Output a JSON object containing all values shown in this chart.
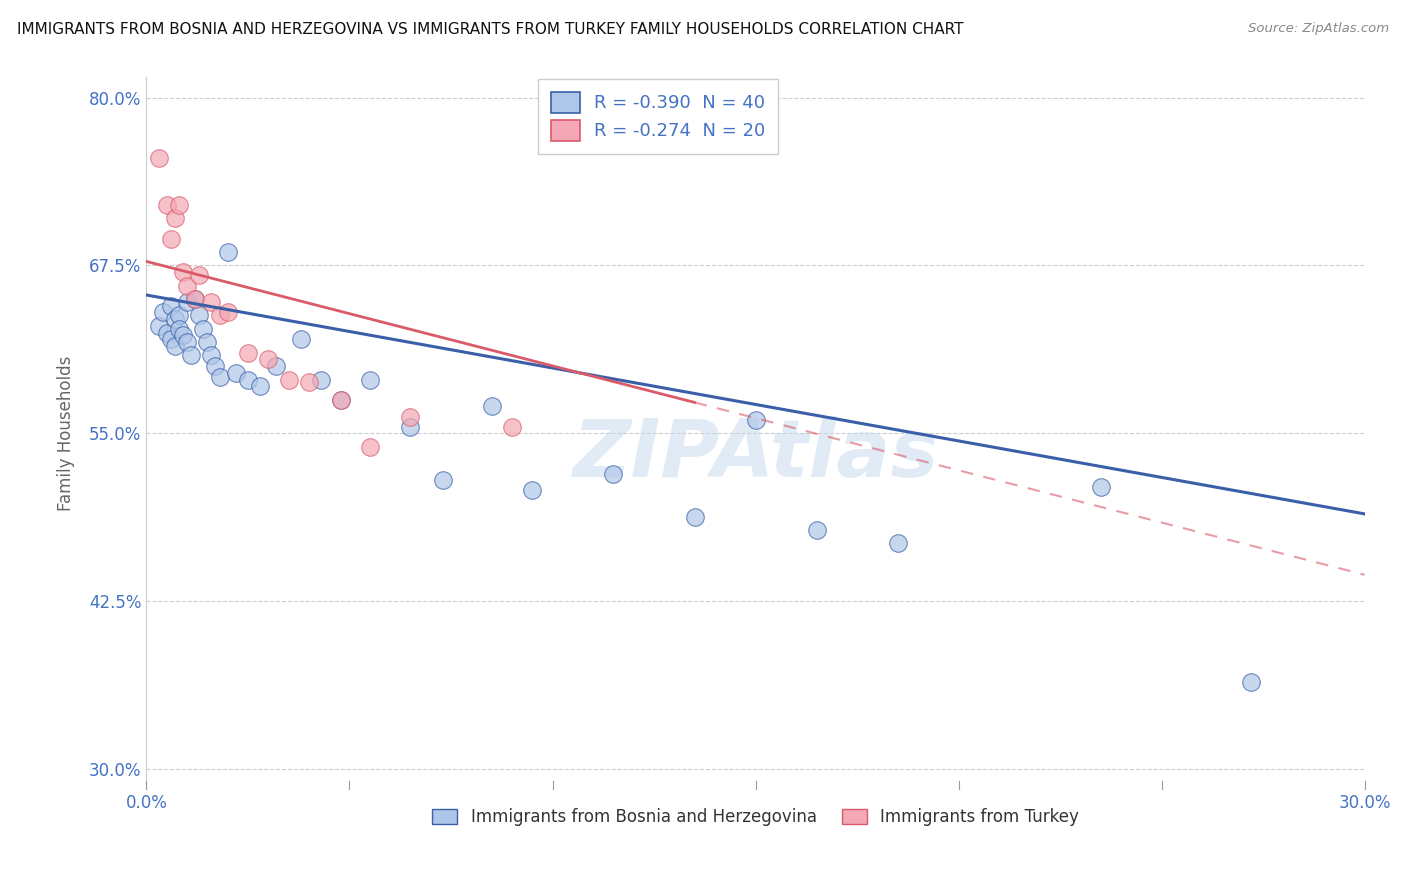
{
  "title": "IMMIGRANTS FROM BOSNIA AND HERZEGOVINA VS IMMIGRANTS FROM TURKEY FAMILY HOUSEHOLDS CORRELATION CHART",
  "source": "Source: ZipAtlas.com",
  "ylabel": "Family Households",
  "xlim": [
    0.0,
    0.3
  ],
  "ylim": [
    0.285,
    0.815
  ],
  "yticks": [
    0.3,
    0.425,
    0.55,
    0.675,
    0.8
  ],
  "ytick_labels": [
    "30.0%",
    "42.5%",
    "55.0%",
    "67.5%",
    "80.0%"
  ],
  "legend_r1": "R = -0.390  N = 40",
  "legend_r2": "R = -0.274  N = 20",
  "legend_label1": "Immigrants from Bosnia and Herzegovina",
  "legend_label2": "Immigrants from Turkey",
  "color_blue": "#AEC6E8",
  "color_pink": "#F4A7B4",
  "trendline_blue": "#3A5FA8",
  "trendline_pink": "#D95B6A",
  "background": "#FFFFFF",
  "grid_color": "#CCCCCC",
  "watermark": "ZIPAtlas",
  "bosnia_x": [
    0.003,
    0.004,
    0.005,
    0.006,
    0.006,
    0.007,
    0.007,
    0.008,
    0.008,
    0.009,
    0.01,
    0.01,
    0.011,
    0.012,
    0.013,
    0.014,
    0.015,
    0.016,
    0.017,
    0.018,
    0.02,
    0.022,
    0.025,
    0.028,
    0.032,
    0.038,
    0.043,
    0.048,
    0.055,
    0.065,
    0.073,
    0.085,
    0.095,
    0.115,
    0.135,
    0.15,
    0.165,
    0.185,
    0.235,
    0.272
  ],
  "bosnia_y": [
    0.63,
    0.64,
    0.625,
    0.62,
    0.645,
    0.615,
    0.635,
    0.638,
    0.628,
    0.623,
    0.648,
    0.618,
    0.608,
    0.65,
    0.638,
    0.628,
    0.618,
    0.608,
    0.6,
    0.592,
    0.685,
    0.595,
    0.59,
    0.585,
    0.6,
    0.62,
    0.59,
    0.575,
    0.59,
    0.555,
    0.515,
    0.57,
    0.508,
    0.52,
    0.488,
    0.56,
    0.478,
    0.468,
    0.51,
    0.365
  ],
  "turkey_x": [
    0.003,
    0.005,
    0.006,
    0.007,
    0.008,
    0.009,
    0.01,
    0.012,
    0.013,
    0.016,
    0.018,
    0.02,
    0.025,
    0.03,
    0.035,
    0.04,
    0.048,
    0.055,
    0.065,
    0.09
  ],
  "turkey_y": [
    0.755,
    0.72,
    0.695,
    0.71,
    0.72,
    0.67,
    0.66,
    0.65,
    0.668,
    0.648,
    0.638,
    0.64,
    0.61,
    0.605,
    0.59,
    0.588,
    0.575,
    0.54,
    0.562,
    0.555
  ],
  "bosnia_trendline_x": [
    0.0,
    0.3
  ],
  "bosnia_trendline_y": [
    0.653,
    0.49
  ],
  "turkey_trendline_x": [
    0.0,
    0.135
  ],
  "turkey_trendline_y": [
    0.678,
    0.573
  ]
}
